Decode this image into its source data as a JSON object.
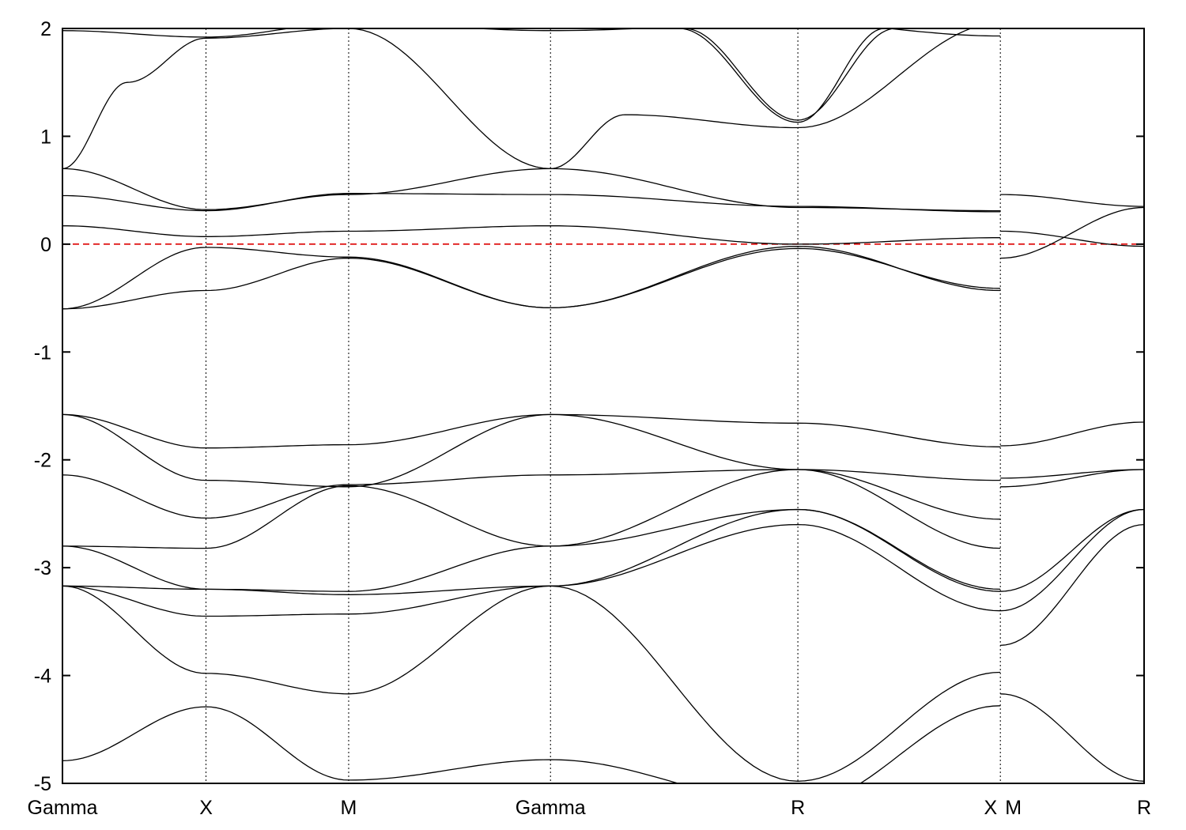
{
  "chart_data": {
    "type": "line",
    "title": "",
    "xlabel": "",
    "ylabel": "",
    "ylim": [
      -5,
      2
    ],
    "yticks": [
      -5,
      -4,
      -3,
      -2,
      -1,
      0,
      1,
      2
    ],
    "y_tick_labels": [
      "-5",
      "-4",
      "-3",
      "-2",
      "-1",
      "0",
      "1",
      "2"
    ],
    "xlim": [
      0,
      1
    ],
    "kpoints": [
      {
        "label": "Gamma",
        "x": 0.0
      },
      {
        "label": "X",
        "x": 0.1327
      },
      {
        "label": "M",
        "x": 0.2646
      },
      {
        "label": "Gamma",
        "x": 0.4512
      },
      {
        "label": "R",
        "x": 0.6799
      },
      {
        "label": "X",
        "x": 0.8671
      },
      {
        "label": "M",
        "x": 0.8671
      },
      {
        "label": "R",
        "x": 1.0
      }
    ],
    "fermi_level": 0,
    "fermi_color": "#dd0000",
    "band_color": "#000000",
    "grid": "vertical dotted lines at high-symmetry points",
    "legend": "none",
    "series": [
      {
        "x": [
          0,
          0.1327,
          0.2646,
          0.4512,
          0.6799,
          0.8671
        ],
        "y": [
          1.98,
          1.92,
          2.05,
          1.98,
          2.05,
          1.93
        ]
      },
      {
        "x": [
          0,
          0.06,
          0.1327,
          0.2646,
          0.4512,
          0.52,
          0.6799,
          0.8671
        ],
        "y": [
          0.7,
          1.5,
          1.91,
          2.0,
          0.7,
          1.2,
          1.08,
          2.05
        ]
      },
      {
        "x": [
          0.57,
          0.6799,
          0.76
        ],
        "y": [
          2.0,
          1.13,
          2.0
        ]
      },
      {
        "x": [
          0.575,
          0.6799,
          0.77
        ],
        "y": [
          2.0,
          1.15,
          2.0
        ]
      },
      {
        "x": [
          0,
          0.1327,
          0.2646,
          0.4512,
          0.6799,
          0.8671
        ],
        "y": [
          0.7,
          0.32,
          0.46,
          0.7,
          0.34,
          0.31
        ]
      },
      {
        "x": [
          0,
          0.1327,
          0.2646,
          0.4512,
          0.6799,
          0.8671
        ],
        "y": [
          0.45,
          0.31,
          0.47,
          0.46,
          0.35,
          0.3
        ]
      },
      {
        "x": [
          0,
          0.1327,
          0.2646,
          0.4512,
          0.6799,
          0.8671
        ],
        "y": [
          0.17,
          0.07,
          0.12,
          0.17,
          0.0,
          0.06
        ]
      },
      {
        "x": [
          0,
          0.1327,
          0.2646,
          0.4512,
          0.6799,
          0.8671
        ],
        "y": [
          -0.6,
          -0.03,
          -0.12,
          -0.59,
          -0.02,
          -0.43
        ]
      },
      {
        "x": [
          0,
          0.1327,
          0.2646,
          0.4512,
          0.6799,
          0.8671
        ],
        "y": [
          -0.6,
          -0.43,
          -0.13,
          -0.59,
          -0.04,
          -0.41
        ]
      },
      {
        "x": [
          0.8671,
          1.0
        ],
        "y": [
          0.46,
          0.35
        ]
      },
      {
        "x": [
          0.8671,
          1.0
        ],
        "y": [
          0.12,
          -0.02
        ]
      },
      {
        "x": [
          0.8671,
          1.0
        ],
        "y": [
          -0.13,
          0.34
        ]
      },
      {
        "x": [
          0,
          0.1327,
          0.2646,
          0.4512,
          0.6799,
          0.8671
        ],
        "y": [
          -1.58,
          -1.89,
          -1.86,
          -1.58,
          -1.66,
          -1.88
        ]
      },
      {
        "x": [
          0,
          0.1327,
          0.2646,
          0.4512,
          0.6799,
          0.8671
        ],
        "y": [
          -1.58,
          -2.19,
          -2.25,
          -1.58,
          -2.09,
          -2.19
        ]
      },
      {
        "x": [
          0,
          0.1327,
          0.2646,
          0.4512,
          0.6799,
          0.8671
        ],
        "y": [
          -2.14,
          -2.54,
          -2.23,
          -2.14,
          -2.09,
          -2.55
        ]
      },
      {
        "x": [
          0,
          0.1327,
          0.2646,
          0.4512,
          0.6799,
          0.8671
        ],
        "y": [
          -2.8,
          -2.82,
          -2.24,
          -2.8,
          -2.09,
          -2.82
        ]
      },
      {
        "x": [
          0,
          0.1327,
          0.2646,
          0.4512,
          0.6799,
          0.8671
        ],
        "y": [
          -2.8,
          -3.2,
          -3.22,
          -2.8,
          -2.46,
          -3.2
        ]
      },
      {
        "x": [
          0,
          0.1327,
          0.2646,
          0.4512,
          0.6799,
          0.8671
        ],
        "y": [
          -3.17,
          -3.2,
          -3.25,
          -3.17,
          -2.46,
          -3.22
        ]
      },
      {
        "x": [
          0,
          0.1327,
          0.2646,
          0.4512,
          0.6799,
          0.8671
        ],
        "y": [
          -3.17,
          -3.45,
          -3.43,
          -3.17,
          -2.6,
          -3.4
        ]
      },
      {
        "x": [
          0,
          0.1327,
          0.2646,
          0.4512,
          0.6799,
          0.8671
        ],
        "y": [
          -3.17,
          -3.98,
          -4.17,
          -3.17,
          -4.98,
          -3.97
        ]
      },
      {
        "x": [
          0,
          0.1327,
          0.2646,
          0.4512,
          0.6799,
          0.8671
        ],
        "y": [
          -4.79,
          -4.29,
          -4.97,
          -4.78,
          -5.2,
          -4.28
        ]
      },
      {
        "x": [
          0.8671,
          1.0
        ],
        "y": [
          -1.87,
          -1.65
        ]
      },
      {
        "x": [
          0.8671,
          1.0
        ],
        "y": [
          -2.17,
          -2.09
        ]
      },
      {
        "x": [
          0.8671,
          1.0
        ],
        "y": [
          -2.25,
          -2.09
        ]
      },
      {
        "x": [
          0.8671,
          1.0
        ],
        "y": [
          -3.22,
          -2.46
        ]
      },
      {
        "x": [
          0.8671,
          1.0
        ],
        "y": [
          -3.4,
          -2.46
        ]
      },
      {
        "x": [
          0.8671,
          1.0
        ],
        "y": [
          -3.72,
          -2.6
        ]
      },
      {
        "x": [
          0.8671,
          1.0
        ],
        "y": [
          -4.17,
          -4.98
        ]
      }
    ]
  }
}
